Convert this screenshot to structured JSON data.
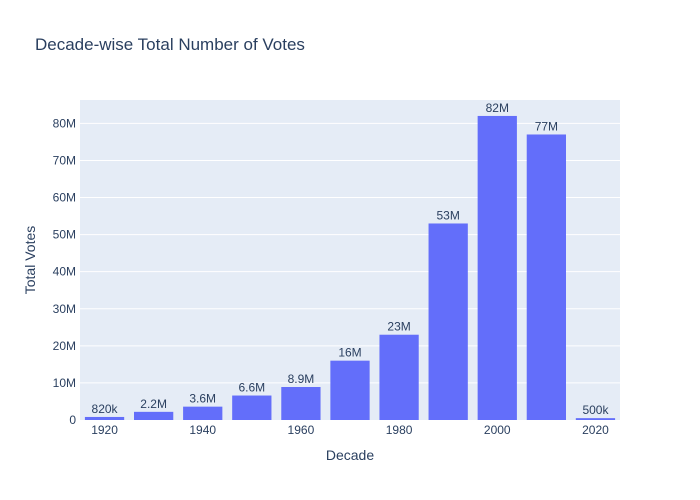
{
  "chart_data": {
    "type": "bar",
    "title": "Decade-wise Total Number of Votes",
    "xlabel": "Decade",
    "ylabel": "Total Votes",
    "categories": [
      1920,
      1930,
      1940,
      1950,
      1960,
      1970,
      1980,
      1990,
      2000,
      2010,
      2020
    ],
    "values": [
      820000,
      2200000,
      3600000,
      6600000,
      8900000,
      16000000,
      23000000,
      53000000,
      82000000,
      77000000,
      500000
    ],
    "value_labels": [
      "820k",
      "2.2M",
      "3.6M",
      "6.6M",
      "8.9M",
      "16M",
      "23M",
      "53M",
      "82M",
      "77M",
      "500k"
    ],
    "x_ticks": [
      1920,
      1940,
      1960,
      1980,
      2000,
      2020
    ],
    "x_tick_labels": [
      "1920",
      "1940",
      "1960",
      "1980",
      "2000",
      "2020"
    ],
    "y_ticks": [
      0,
      10000000,
      20000000,
      30000000,
      40000000,
      50000000,
      60000000,
      70000000,
      80000000
    ],
    "y_tick_labels": [
      "0",
      "10M",
      "20M",
      "30M",
      "40M",
      "50M",
      "60M",
      "70M",
      "80M"
    ],
    "xlim": [
      1915,
      2025
    ],
    "ylim": [
      0,
      86300000
    ],
    "grid": true,
    "colors": {
      "bar": "#636efa",
      "plot_bg": "#e5ecf6",
      "grid": "#ffffff",
      "text": "#2a3f5f"
    }
  }
}
